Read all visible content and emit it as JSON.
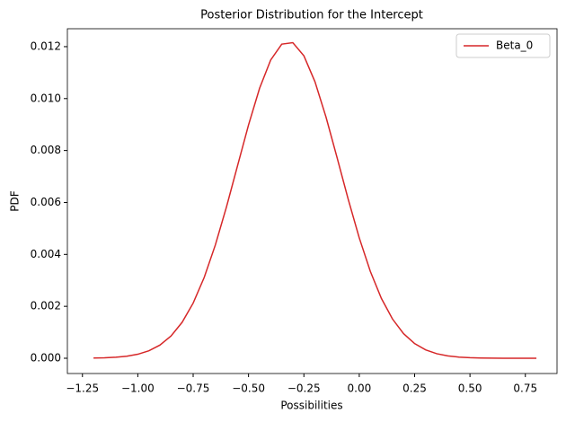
{
  "chart_data": {
    "type": "line",
    "title": "Posterior Distribution for the Intercept",
    "x_label": "Possibilities",
    "y_label": "PDF",
    "x": [
      -1.2,
      -1.15,
      -1.1,
      -1.05,
      -1.0,
      -0.95,
      -0.9,
      -0.85,
      -0.8,
      -0.75,
      -0.7,
      -0.65,
      -0.6,
      -0.55,
      -0.5,
      -0.45,
      -0.4,
      -0.35,
      -0.3,
      -0.25,
      -0.2,
      -0.15,
      -0.1,
      -0.05,
      0.0,
      0.05,
      0.1,
      0.15,
      0.2,
      0.25,
      0.3,
      0.35,
      0.4,
      0.45,
      0.5,
      0.55,
      0.6,
      0.65,
      0.7,
      0.75,
      0.8
    ],
    "series": [
      {
        "name": "Beta_0",
        "color": "#d62728",
        "values": [
          8.1e-06,
          1.81e-05,
          3.88e-05,
          7.92e-05,
          0.000154,
          0.000287,
          0.000507,
          0.000858,
          0.001382,
          0.002124,
          0.003116,
          0.004359,
          0.005815,
          0.0074,
          0.008984,
          0.0104,
          0.011484,
          0.012096,
          0.012154,
          0.011647,
          0.010648,
          0.009284,
          0.007721,
          0.006126,
          0.004635,
          0.003345,
          0.002303,
          0.001512,
          0.000947,
          0.000566,
          0.000323,
          0.000175,
          9.09e-05,
          4.49e-05,
          2.12e-05,
          9.5e-06,
          4.1e-06,
          1.7e-06,
          7e-07,
          3e-07,
          1e-07
        ]
      }
    ],
    "xlim": [
      -1.318,
      0.893
    ],
    "ylim": [
      -0.000588,
      0.01269
    ],
    "xticks": [
      {
        "value": -1.25,
        "label": "−1.25"
      },
      {
        "value": -1.0,
        "label": "−1.00"
      },
      {
        "value": -0.75,
        "label": "−0.75"
      },
      {
        "value": -0.5,
        "label": "−0.50"
      },
      {
        "value": -0.25,
        "label": "−0.25"
      },
      {
        "value": 0,
        "label": "0.00"
      },
      {
        "value": 0.25,
        "label": "0.25"
      },
      {
        "value": 0.5,
        "label": "0.50"
      },
      {
        "value": 0.75,
        "label": "0.75"
      }
    ],
    "yticks": [
      {
        "value": 0,
        "label": "0.000"
      },
      {
        "value": 0.002,
        "label": "0.002"
      },
      {
        "value": 0.004,
        "label": "0.004"
      },
      {
        "value": 0.006,
        "label": "0.006"
      },
      {
        "value": 0.008,
        "label": "0.008"
      },
      {
        "value": 0.01,
        "label": "0.010"
      },
      {
        "value": 0.012,
        "label": "0.012"
      }
    ],
    "grid": false,
    "legend": "upper right"
  }
}
